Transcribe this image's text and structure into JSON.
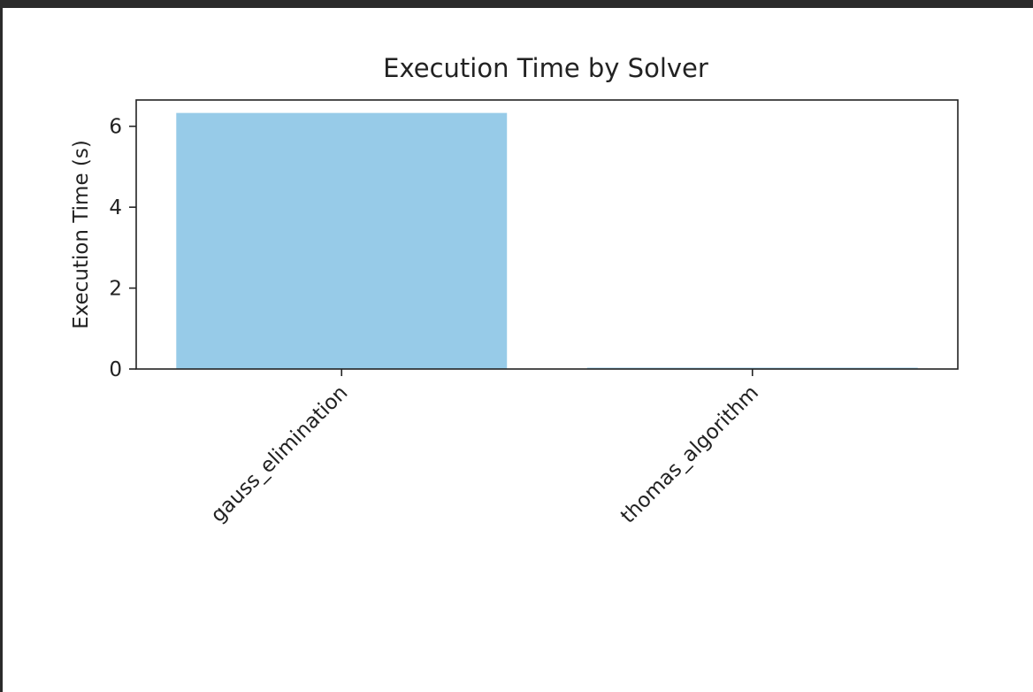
{
  "chart_data": {
    "type": "bar",
    "title": "Execution Time by Solver",
    "xlabel": "",
    "ylabel": "Execution Time (s)",
    "categories": [
      "gauss_elimination",
      "thomas_algorithm"
    ],
    "values": [
      6.33,
      0.03
    ],
    "ylim": [
      0,
      6.65
    ],
    "yticks": [
      0,
      2,
      4,
      6
    ],
    "ytick_labels": [
      "0",
      "2",
      "4",
      "6"
    ],
    "grid": false,
    "legend": "none",
    "bar_color": "#97cbe8",
    "xtick_rotation": -45
  }
}
